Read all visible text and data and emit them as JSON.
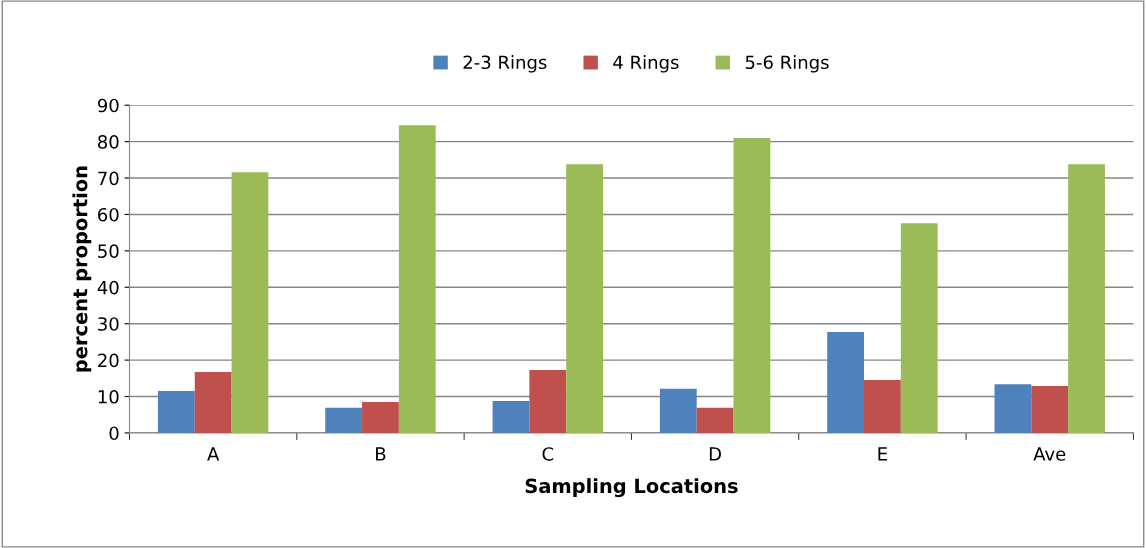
{
  "chart_data": {
    "type": "bar",
    "xlabel": "Sampling Locations",
    "ylabel": "percent proportion",
    "categories": [
      "A",
      "B",
      "C",
      "D",
      "E",
      "Ave"
    ],
    "series": [
      {
        "name": "2-3 Rings",
        "color": "#4f81bd",
        "values": [
          11.5,
          6.9,
          8.8,
          12.1,
          27.7,
          13.4
        ]
      },
      {
        "name": "4 Rings",
        "color": "#c0504d",
        "values": [
          16.7,
          8.5,
          17.3,
          6.9,
          14.5,
          12.9
        ]
      },
      {
        "name": "5-6 Rings",
        "color": "#9bbb59",
        "values": [
          71.6,
          84.5,
          73.8,
          81.0,
          57.6,
          73.8
        ]
      }
    ],
    "ylim": [
      0,
      90
    ],
    "yticks": [
      0,
      10,
      20,
      30,
      40,
      50,
      60,
      70,
      80,
      90
    ],
    "grid": "y",
    "legend": "top"
  }
}
